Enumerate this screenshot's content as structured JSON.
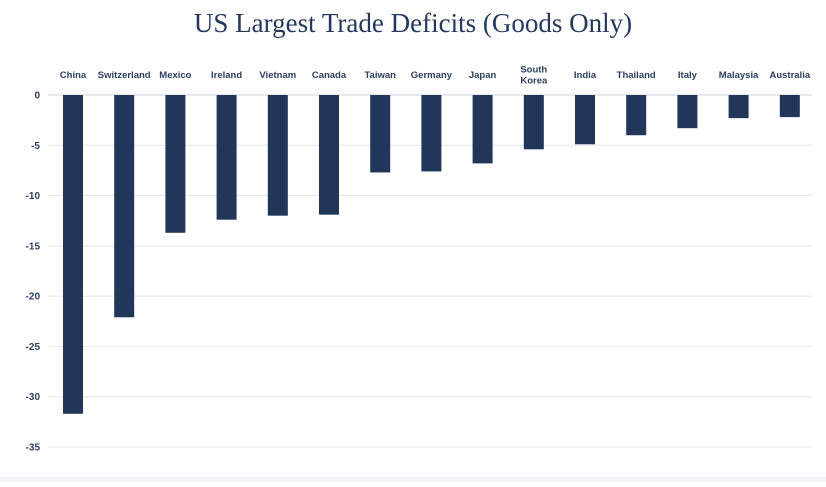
{
  "chart_data": {
    "type": "bar",
    "title": "US Largest Trade Deficits (Goods Only)",
    "xlabel": "",
    "ylabel": "",
    "categories": [
      "China",
      "Switzerland",
      "Mexico",
      "Ireland",
      "Vietnam",
      "Canada",
      "Taiwan",
      "Germany",
      "Japan",
      "South Korea",
      "India",
      "Thailand",
      "Italy",
      "Malaysia",
      "Australia"
    ],
    "values": [
      -31.7,
      -22.1,
      -13.7,
      -12.4,
      -12.0,
      -11.9,
      -7.7,
      -7.6,
      -6.8,
      -5.4,
      -4.9,
      -4.0,
      -3.3,
      -2.3,
      -2.2
    ],
    "ylim": [
      -35,
      0
    ],
    "yticks": [
      0,
      -5,
      -10,
      -15,
      -20,
      -25,
      -30,
      -35
    ],
    "grid": true,
    "legend": "none",
    "bar_color": "#22365a",
    "category_labels_position": "top"
  }
}
